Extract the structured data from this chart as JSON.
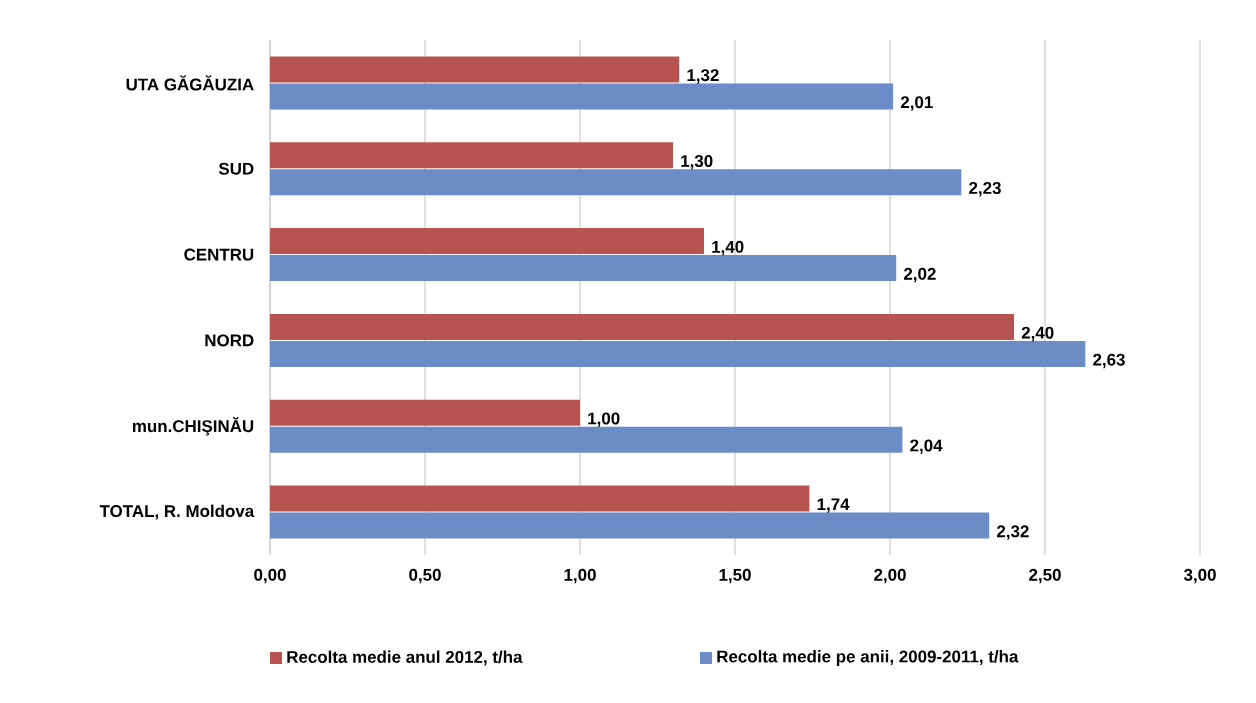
{
  "chart_data": {
    "type": "bar",
    "orientation": "horizontal",
    "categories": [
      "UTA GĂGĂUZIA",
      "SUD",
      "CENTRU",
      "NORD",
      "mun.CHIŞINĂU",
      "TOTAL, R. Moldova"
    ],
    "series": [
      {
        "name": "Recolta medie anul 2012, t/ha",
        "color": "#b85450",
        "values": [
          1.32,
          1.3,
          1.4,
          2.4,
          1.0,
          1.74
        ],
        "value_labels": [
          "1,32",
          "1,30",
          "1,40",
          "2,40",
          "1,00",
          "1,74"
        ]
      },
      {
        "name": "Recolta medie pe anii, 2009-2011, t/ha",
        "color": "#6b8cc7",
        "values": [
          2.01,
          2.23,
          2.02,
          2.63,
          2.04,
          2.32
        ],
        "value_labels": [
          "2,01",
          "2,23",
          "2,02",
          "2,63",
          "2,04",
          "2,32"
        ]
      }
    ],
    "xlim": [
      0,
      3
    ],
    "xticks": [
      {
        "value": 0,
        "label": "0,00"
      },
      {
        "value": 0.5,
        "label": "0,50"
      },
      {
        "value": 1,
        "label": "1,00"
      },
      {
        "value": 1.5,
        "label": "1,50"
      },
      {
        "value": 2,
        "label": "2,00"
      },
      {
        "value": 2.5,
        "label": "2,50"
      },
      {
        "value": 3,
        "label": "3,00"
      }
    ],
    "grid": "x",
    "legend": "bottom"
  }
}
